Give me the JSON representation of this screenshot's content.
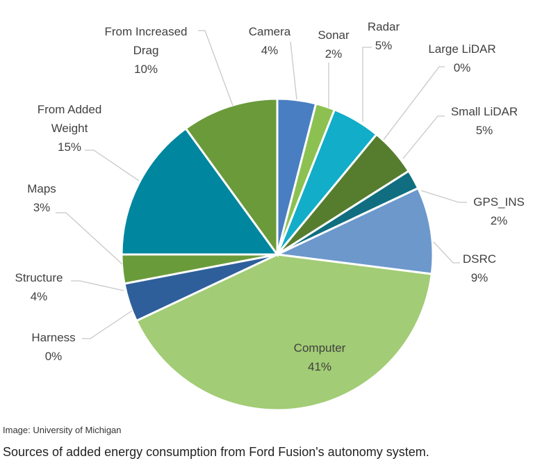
{
  "chart_data": {
    "type": "pie",
    "start": "12 o'clock, clockwise",
    "slices": [
      {
        "label": "Camera",
        "value": 4,
        "pct": "4%",
        "color": "#4A7EC2"
      },
      {
        "label": "Sonar",
        "value": 2,
        "pct": "2%",
        "color": "#8CC152"
      },
      {
        "label": "Radar",
        "value": 5,
        "pct": "5%",
        "color": "#12ADC8"
      },
      {
        "label": "Large LiDAR",
        "value": 0,
        "pct": "0%",
        "color": "#3F6F2A"
      },
      {
        "label": "Small LiDAR",
        "value": 5,
        "pct": "5%",
        "color": "#567D2E"
      },
      {
        "label": "GPS_INS",
        "value": 2,
        "pct": "2%",
        "color": "#106E80"
      },
      {
        "label": "DSRC",
        "value": 9,
        "pct": "9%",
        "color": "#6C98CC"
      },
      {
        "label": "Computer",
        "value": 41,
        "pct": "41%",
        "color": "#A2CC75"
      },
      {
        "label": "Harness",
        "value": 0,
        "pct": "0%",
        "color": "#2E5C96"
      },
      {
        "label": "Structure",
        "value": 4,
        "pct": "4%",
        "color": "#2F5F9A"
      },
      {
        "label": "Maps",
        "value": 3,
        "pct": "3%",
        "color": "#6A9B3A"
      },
      {
        "label": "From Added Weight",
        "value": 15,
        "pct": "15%",
        "color": "#00869F"
      },
      {
        "label": "From Increased Drag",
        "value": 10,
        "pct": "10%",
        "color": "#6A9A3A"
      }
    ]
  },
  "credit": "Image: University of Michigan",
  "caption": "Sources of added energy consumption from Ford Fusion's autonomy system."
}
